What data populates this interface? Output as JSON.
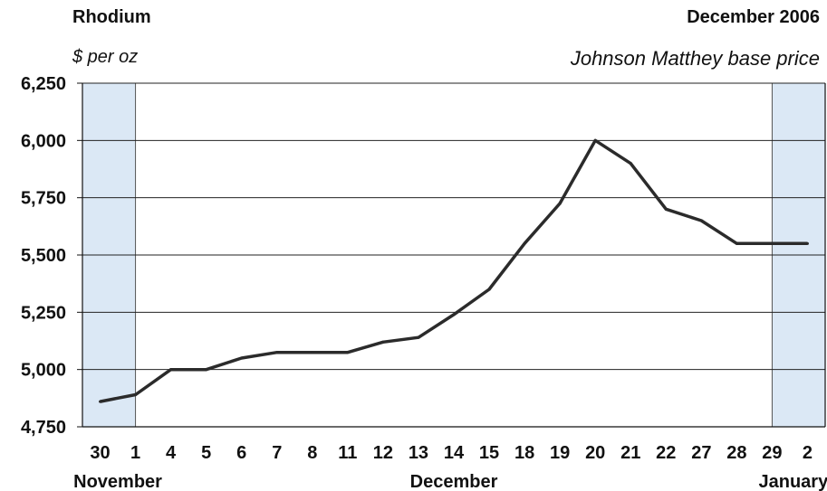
{
  "header": {
    "title": "Rhodium",
    "date": "December 2006",
    "units": "$ per oz",
    "source": "Johnson Matthey base price"
  },
  "colors": {
    "line": "#2b2b2b",
    "shade": "#dbe8f5",
    "grid": "#222222"
  },
  "chart_data": {
    "type": "line",
    "title": "Rhodium",
    "ylabel": "$ per oz",
    "ylim": [
      4750,
      6250
    ],
    "yticks": [
      4750,
      5000,
      5250,
      5500,
      5750,
      6000,
      6250
    ],
    "ytick_labels": [
      "4,750",
      "5,000",
      "5,250",
      "5,500",
      "5,750",
      "6,000",
      "6,250"
    ],
    "categories": [
      "30",
      "1",
      "4",
      "5",
      "6",
      "7",
      "8",
      "11",
      "12",
      "13",
      "14",
      "15",
      "18",
      "19",
      "20",
      "21",
      "22",
      "27",
      "28",
      "29",
      "2"
    ],
    "months": [
      {
        "label": "November",
        "index": 0.5
      },
      {
        "label": "December",
        "index": 10
      },
      {
        "label": "January",
        "index": 19.6
      }
    ],
    "shaded_ranges": [
      [
        0,
        1
      ],
      [
        19,
        20
      ]
    ],
    "series": [
      {
        "values": [
          4860,
          4890,
          5000,
          5000,
          5050,
          5075,
          5075,
          5075,
          5120,
          5140,
          5240,
          5350,
          5550,
          5725,
          6000,
          5900,
          5700,
          5650,
          5550,
          5550,
          5550
        ]
      }
    ],
    "grid": true
  }
}
